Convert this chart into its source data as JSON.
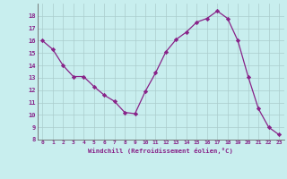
{
  "x": [
    0,
    1,
    2,
    3,
    4,
    5,
    6,
    7,
    8,
    9,
    10,
    11,
    12,
    13,
    14,
    15,
    16,
    17,
    18,
    19,
    20,
    21,
    22,
    23
  ],
  "y": [
    16.0,
    15.3,
    14.0,
    13.1,
    13.1,
    12.3,
    11.6,
    11.1,
    10.2,
    10.1,
    11.9,
    13.4,
    15.1,
    16.1,
    16.7,
    17.5,
    17.8,
    18.4,
    17.8,
    16.0,
    13.1,
    10.5,
    9.0,
    8.4
  ],
  "line_color": "#882288",
  "marker": "D",
  "marker_size": 2.2,
  "bg_color": "#c8eeee",
  "grid_color": "#aacccc",
  "xlabel": "Windchill (Refroidissement éolien,°C)",
  "xlabel_color": "#882288",
  "tick_color": "#882288",
  "ylim": [
    8,
    19
  ],
  "xlim": [
    -0.5,
    23.5
  ],
  "yticks": [
    8,
    9,
    10,
    11,
    12,
    13,
    14,
    15,
    16,
    17,
    18
  ],
  "xticks": [
    0,
    1,
    2,
    3,
    4,
    5,
    6,
    7,
    8,
    9,
    10,
    11,
    12,
    13,
    14,
    15,
    16,
    17,
    18,
    19,
    20,
    21,
    22,
    23
  ]
}
